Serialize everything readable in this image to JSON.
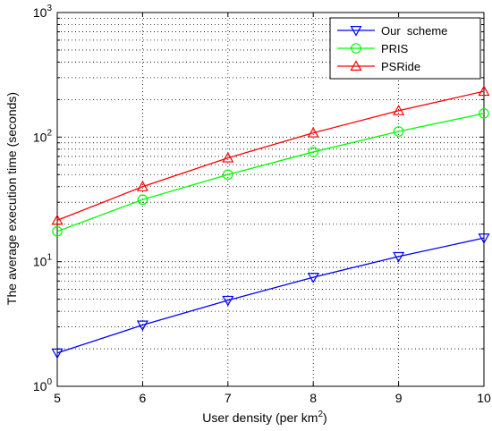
{
  "chart_data": {
    "type": "line",
    "xlabel": "User density (per km",
    "xlabel_sup": "2",
    "xlabel_close": ")",
    "ylabel": "The average execution time (seconds)",
    "x": [
      5,
      6,
      7,
      8,
      9,
      10
    ],
    "xlim": [
      5,
      10
    ],
    "ylim": [
      1,
      1000
    ],
    "yscale": "log",
    "grid": true,
    "legend_position": "top-right",
    "x_tick_labels": [
      "5",
      "6",
      "7",
      "8",
      "9",
      "10"
    ],
    "y_tick_labels": [
      {
        "base": "10",
        "exp": "0",
        "value": 1
      },
      {
        "base": "10",
        "exp": "1",
        "value": 10
      },
      {
        "base": "10",
        "exp": "2",
        "value": 100
      },
      {
        "base": "10",
        "exp": "3",
        "value": 1000
      }
    ],
    "series": [
      {
        "name": "Our  scheme",
        "color": "#0000ff",
        "marker": "triangle-down",
        "values": [
          1.85,
          3.1,
          4.9,
          7.5,
          11,
          15.5
        ]
      },
      {
        "name": "PRIS",
        "color": "#00ff00",
        "marker": "circle",
        "values": [
          17.5,
          31.5,
          50,
          76,
          111,
          155
        ]
      },
      {
        "name": "PSRide",
        "color": "#ff0000",
        "marker": "triangle-up",
        "values": [
          21.5,
          40,
          68,
          108,
          163,
          233
        ]
      }
    ]
  }
}
